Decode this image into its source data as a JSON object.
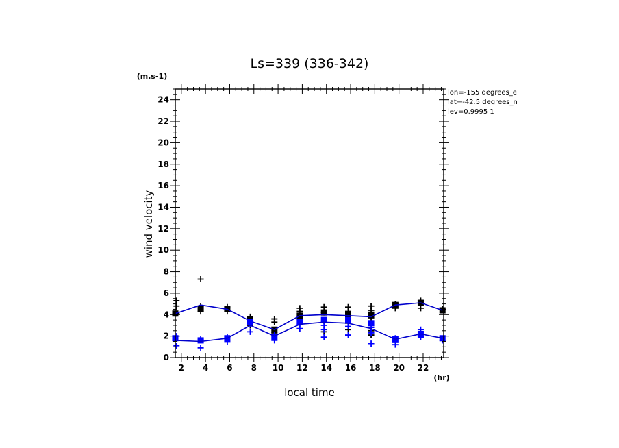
{
  "chart_data": {
    "type": "line",
    "title": "Ls=339 (336-342)",
    "xlabel": "local time",
    "ylabel": "wind velocity",
    "x_unit": "(hr)",
    "y_unit": "(m.s-1)",
    "xlim": [
      1.5,
      23.7
    ],
    "ylim": [
      0,
      25
    ],
    "x_ticks": [
      2,
      4,
      6,
      8,
      10,
      12,
      14,
      16,
      18,
      20,
      22
    ],
    "y_ticks": [
      0,
      2,
      4,
      6,
      8,
      10,
      12,
      14,
      16,
      18,
      20,
      22,
      24
    ],
    "info_lines": [
      "lon=-155 degrees_e",
      "lat=-42.5 degrees_n",
      "lev=0.9995 1"
    ],
    "grid": false,
    "series": [
      {
        "color": "#000000",
        "line_color": "#0000cc",
        "x": [
          1.5,
          3.6,
          5.8,
          7.7,
          9.7,
          11.8,
          13.8,
          15.8,
          17.7,
          19.7,
          21.8,
          23.6
        ],
        "mean": [
          4.1,
          4.9,
          4.5,
          3.4,
          2.6,
          3.9,
          4.0,
          3.9,
          3.8,
          4.9,
          5.1,
          4.4
        ],
        "boxes": [
          [
            1.5,
            4.1
          ],
          [
            3.6,
            4.5
          ],
          [
            5.8,
            4.5
          ],
          [
            7.7,
            3.6
          ],
          [
            9.7,
            2.6
          ],
          [
            11.8,
            3.9
          ],
          [
            13.8,
            4.2
          ],
          [
            15.8,
            4.0
          ],
          [
            17.7,
            4.0
          ],
          [
            19.7,
            4.9
          ],
          [
            21.8,
            5.1
          ],
          [
            23.6,
            4.4
          ]
        ],
        "points": [
          [
            1.6,
            5.3
          ],
          [
            1.6,
            4.8
          ],
          [
            1.6,
            4.1
          ],
          [
            3.6,
            7.3
          ],
          [
            3.6,
            4.8
          ],
          [
            3.6,
            4.3
          ],
          [
            5.8,
            4.7
          ],
          [
            5.8,
            4.3
          ],
          [
            7.7,
            3.8
          ],
          [
            7.7,
            3.2
          ],
          [
            7.7,
            3.0
          ],
          [
            9.7,
            3.6
          ],
          [
            9.7,
            3.3
          ],
          [
            9.7,
            2.3
          ],
          [
            11.8,
            4.6
          ],
          [
            11.8,
            4.3
          ],
          [
            11.8,
            3.6
          ],
          [
            13.8,
            4.7
          ],
          [
            13.8,
            4.2
          ],
          [
            13.8,
            3.4
          ],
          [
            13.8,
            2.4
          ],
          [
            15.8,
            4.7
          ],
          [
            15.8,
            4.3
          ],
          [
            15.8,
            3.2
          ],
          [
            15.8,
            2.6
          ],
          [
            17.7,
            4.8
          ],
          [
            17.7,
            4.4
          ],
          [
            17.7,
            3.7
          ],
          [
            17.7,
            2.5
          ],
          [
            17.7,
            2.1
          ],
          [
            19.7,
            5.0
          ],
          [
            19.7,
            4.6
          ],
          [
            21.8,
            5.3
          ],
          [
            21.8,
            4.6
          ],
          [
            23.6,
            4.5
          ]
        ]
      },
      {
        "color": "#0000ff",
        "line_color": "#0000cc",
        "x": [
          1.5,
          3.6,
          5.8,
          7.7,
          9.7,
          11.8,
          13.8,
          15.8,
          17.7,
          19.7,
          21.8,
          23.6
        ],
        "mean": [
          1.6,
          1.5,
          1.8,
          3.0,
          2.0,
          3.1,
          3.3,
          3.2,
          2.7,
          1.7,
          2.2,
          1.8
        ],
        "boxes": [
          [
            1.5,
            1.8
          ],
          [
            3.6,
            1.6
          ],
          [
            5.8,
            1.8
          ],
          [
            7.7,
            3.3
          ],
          [
            9.7,
            1.9
          ],
          [
            11.8,
            3.3
          ],
          [
            13.8,
            3.5
          ],
          [
            15.8,
            3.5
          ],
          [
            17.7,
            3.2
          ],
          [
            19.7,
            1.7
          ],
          [
            21.8,
            2.2
          ],
          [
            23.6,
            1.8
          ]
        ],
        "points": [
          [
            1.6,
            2.0
          ],
          [
            1.6,
            1.1
          ],
          [
            3.6,
            1.7
          ],
          [
            3.6,
            0.9
          ],
          [
            5.8,
            1.5
          ],
          [
            5.8,
            1.9
          ],
          [
            7.7,
            3.1
          ],
          [
            7.7,
            2.4
          ],
          [
            9.7,
            2.1
          ],
          [
            9.7,
            1.6
          ],
          [
            11.8,
            2.7
          ],
          [
            11.8,
            3.1
          ],
          [
            13.8,
            3.0
          ],
          [
            13.8,
            2.6
          ],
          [
            13.8,
            1.9
          ],
          [
            15.8,
            2.9
          ],
          [
            15.8,
            2.1
          ],
          [
            17.7,
            2.8
          ],
          [
            17.7,
            2.3
          ],
          [
            17.7,
            1.3
          ],
          [
            19.7,
            1.8
          ],
          [
            19.7,
            1.2
          ],
          [
            21.8,
            2.6
          ],
          [
            21.8,
            1.9
          ],
          [
            23.6,
            1.6
          ]
        ]
      }
    ]
  }
}
